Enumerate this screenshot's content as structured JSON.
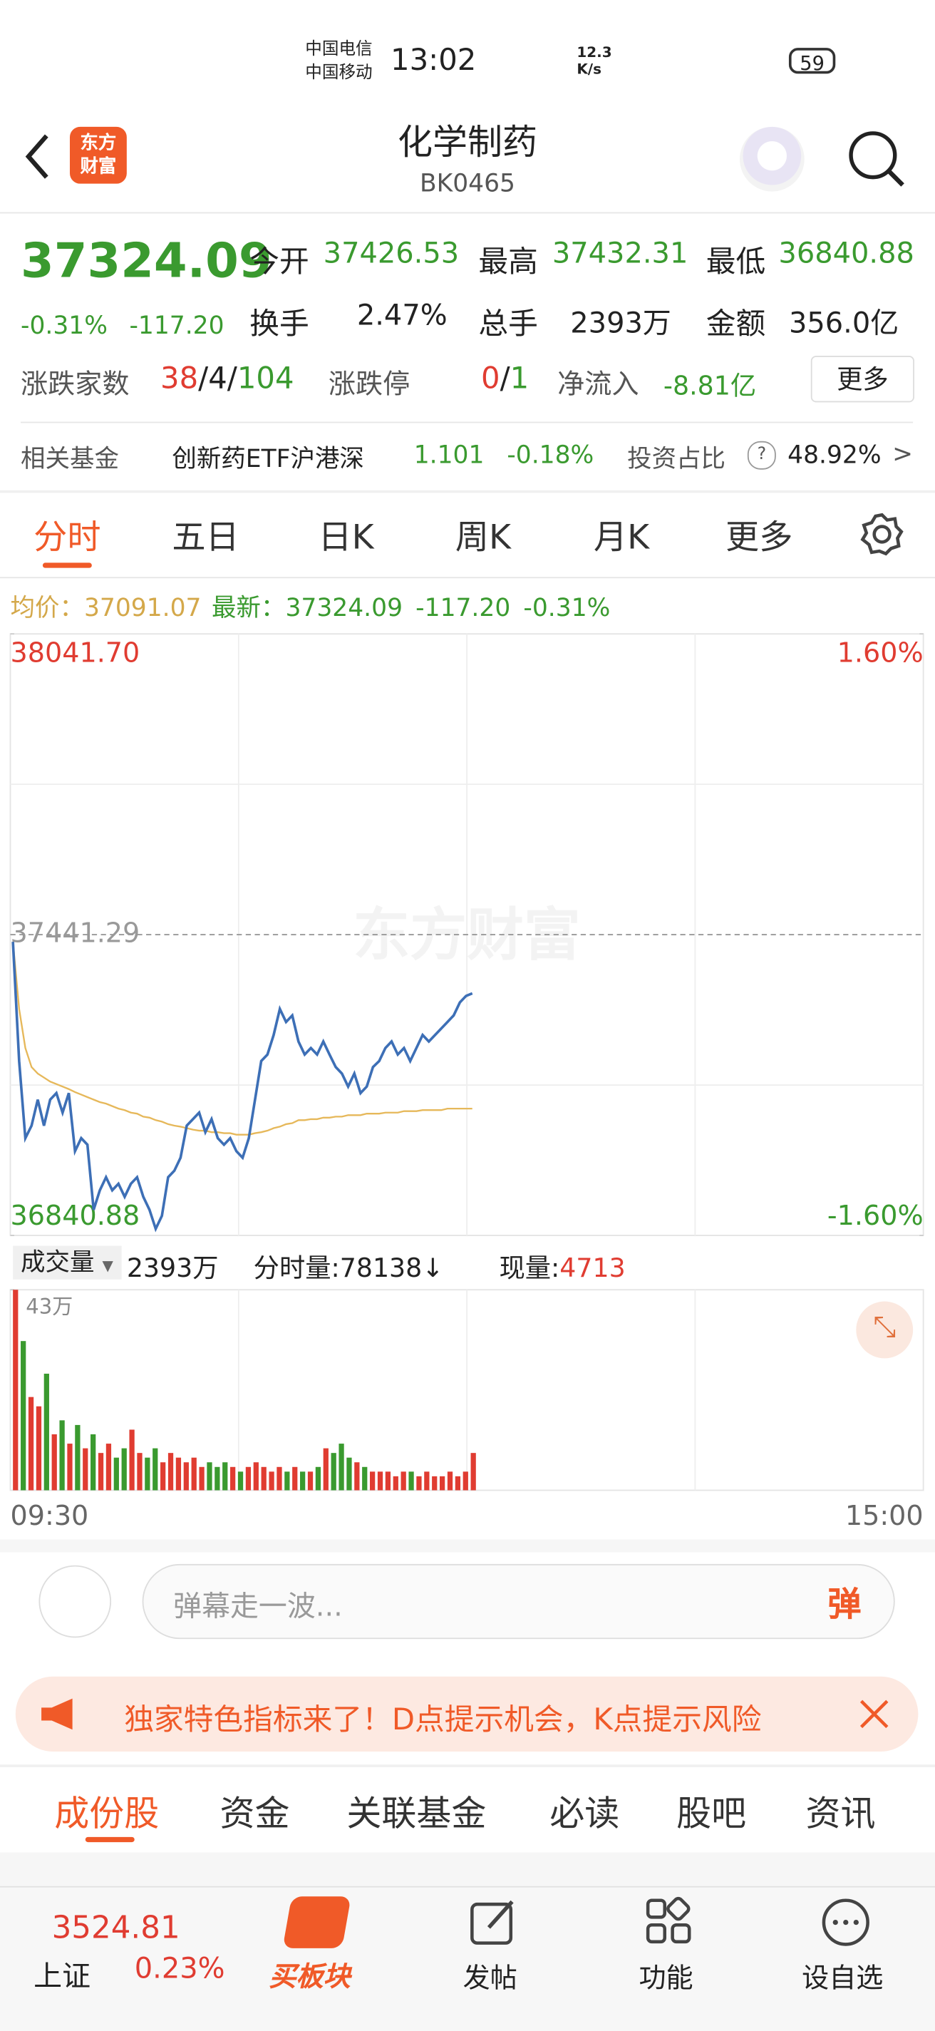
{
  "status_bar": {
    "carrier_1": "中国电信",
    "carrier_2": "中国移动",
    "time": "13:02",
    "speed": "12.3",
    "speed_unit": "K/s",
    "battery": "59"
  },
  "header": {
    "logo_line_1": "东方",
    "logo_line_2": "财富",
    "title": "化学制药",
    "code": "BK0465"
  },
  "quote": {
    "price": "37324.09",
    "change_pct": "-0.31%",
    "change": "-117.20",
    "open_label": "今开",
    "open": "37426.53",
    "high_label": "最高",
    "high": "37432.31",
    "low_label": "最低",
    "low": "36840.88",
    "turnover_label": "换手",
    "turnover": "2.47%",
    "volume_label": "总手",
    "volume": "2393万",
    "amount_label": "金额",
    "amount": "356.0亿",
    "breadth_label": "涨跌家数",
    "up_count": "38",
    "flat_count": "4",
    "down_count": "104",
    "limit_label": "涨跌停",
    "limit_up": "0",
    "limit_down": "1",
    "netflow_label": "净流入",
    "netflow": "-8.81亿",
    "more": "更多"
  },
  "fund": {
    "label": "相关基金",
    "name": "创新药ETF沪港深",
    "price": "1.101",
    "change": "-0.18%",
    "weight_label": "投资占比",
    "weight": "48.92%",
    "arrow": ">"
  },
  "tabs": [
    "分时",
    "五日",
    "日K",
    "周K",
    "月K",
    "更多"
  ],
  "info": {
    "avg_label": "均价：",
    "avg": "37091.07",
    "last_label": "最新：",
    "last": "37324.09",
    "change": "-117.20",
    "change_pct": "-0.31%"
  },
  "intraday": {
    "type": "line",
    "watermark": "东方财富",
    "ylim": [
      36840.88,
      38041.7
    ],
    "yticks": [
      {
        "value": 38041.7,
        "label": "38041.70"
      },
      37441.29,
      36840.88
    ],
    "y2lim": [
      -1.6,
      1.6
    ],
    "y2ticks": [
      {
        "value": 1.6,
        "label": "1.60%"
      },
      {
        "value": -1.6,
        "label": "-1.60%"
      }
    ],
    "grid": true,
    "x_labels": [
      "09:30",
      "15:00"
    ],
    "series": [
      {
        "name": "最新",
        "color": "#3d6fb6",
        "values": [
          37427,
          37189,
          37035,
          37060,
          37112,
          37060,
          37112,
          37125,
          37086,
          37125,
          37009,
          37035,
          37022,
          36892,
          36931,
          36957,
          36931,
          36944,
          36918,
          36944,
          36957,
          36918,
          36892,
          36854,
          36880,
          36957,
          36970,
          36996,
          37060,
          37073,
          37086,
          37047,
          37073,
          37035,
          37022,
          37035,
          37009,
          36996,
          37035,
          37112,
          37189,
          37202,
          37241,
          37293,
          37267,
          37280,
          37228,
          37202,
          37215,
          37202,
          37228,
          37202,
          37177,
          37164,
          37138,
          37164,
          37125,
          37138,
          37177,
          37189,
          37215,
          37228,
          37202,
          37215,
          37189,
          37215,
          37241,
          37228,
          37241,
          37254,
          37267,
          37280,
          37306,
          37319,
          37324.09
        ]
      },
      {
        "name": "均价",
        "color": "#e6b85a",
        "values": [
          37427,
          37293,
          37215,
          37177,
          37164,
          37156,
          37148,
          37143,
          37138,
          37133,
          37127,
          37122,
          37117,
          37112,
          37107,
          37104,
          37099,
          37094,
          37091,
          37086,
          37084,
          37078,
          37076,
          37071,
          37068,
          37063,
          37060,
          37058,
          37055,
          37052,
          37050,
          37050,
          37047,
          37047,
          37045,
          37045,
          37042,
          37042,
          37042,
          37045,
          37047,
          37050,
          37055,
          37058,
          37063,
          37065,
          37071,
          37071,
          37073,
          37073,
          37076,
          37076,
          37078,
          37078,
          37081,
          37081,
          37081,
          37084,
          37084,
          37084,
          37086,
          37086,
          37086,
          37089,
          37089,
          37089,
          37091,
          37091,
          37091,
          37091,
          37094,
          37094,
          37094,
          37094,
          37094
        ]
      }
    ]
  },
  "volume_bar": {
    "label": "成交量",
    "total": "2393万",
    "minute_volume": "分时量:78138↓",
    "current_label": "现量:",
    "current": "4713"
  },
  "volume": {
    "type": "bar",
    "ylim": [
      0,
      43
    ],
    "yticks": [
      {
        "value": 43,
        "label": "43万"
      }
    ],
    "up_color": "#e03c31",
    "down_color": "#3a9a2f",
    "values": [
      43,
      32,
      20,
      18,
      25,
      12,
      15,
      10,
      14,
      9,
      12,
      8,
      10,
      7,
      9,
      13,
      8,
      7,
      9,
      6,
      8,
      7,
      6,
      7,
      5,
      6,
      5,
      6,
      5,
      4,
      5,
      6,
      5,
      4,
      5,
      4,
      5,
      4,
      4,
      5,
      9,
      8,
      10,
      7,
      6,
      5,
      4,
      4,
      4,
      3,
      4,
      4,
      3,
      4,
      3,
      3,
      4,
      3,
      4,
      8
    ]
  },
  "comment": {
    "placeholder": "弹幕走一波...",
    "button": "弹"
  },
  "banner": {
    "text": "独家特色指标来了！D点提示机会，K点提示风险"
  },
  "bottom_tabs": [
    "成份股",
    "资金",
    "关联基金",
    "必读",
    "股吧",
    "资讯"
  ],
  "nav": {
    "index_value": "3524.81",
    "index_name": "上证",
    "index_change": "0.23%",
    "buy": "买板块",
    "post": "发帖",
    "tools": "功能",
    "watch": "设自选"
  }
}
